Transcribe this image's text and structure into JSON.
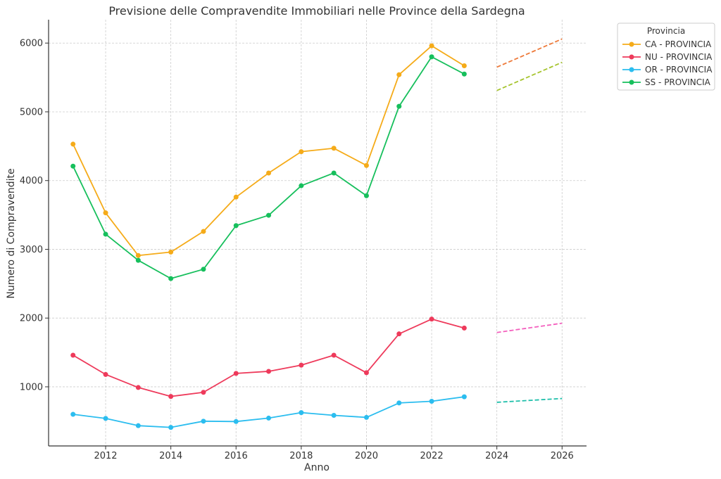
{
  "chart_data": {
    "type": "line",
    "title": "Previsione delle Compravendite Immobiliari nelle Province della Sardegna",
    "xlabel": "Anno",
    "ylabel": "Numero di Compravendite",
    "xlim": [
      2010.25,
      2026.75
    ],
    "ylim": [
      140,
      6340
    ],
    "x_ticks": [
      2012,
      2014,
      2016,
      2018,
      2020,
      2022,
      2024,
      2026
    ],
    "y_ticks": [
      1000,
      2000,
      3000,
      4000,
      5000,
      6000
    ],
    "grid": true,
    "legend": {
      "title": "Provincia",
      "placement": "top-right, outside plot"
    },
    "x": [
      2011,
      2012,
      2013,
      2014,
      2015,
      2016,
      2017,
      2018,
      2019,
      2020,
      2021,
      2022,
      2023
    ],
    "series": [
      {
        "name": "CA - PROVINCIA",
        "color": "#f5ab19",
        "values": [
          4530,
          3530,
          2910,
          2960,
          3260,
          3760,
          4110,
          4420,
          4470,
          4220,
          5540,
          5960,
          5670
        ]
      },
      {
        "name": "NU - PROVINCIA",
        "color": "#ee3a5b",
        "values": [
          1460,
          1180,
          990,
          860,
          920,
          1195,
          1225,
          1315,
          1460,
          1205,
          1770,
          1985,
          1855
        ]
      },
      {
        "name": "OR - PROVINCIA",
        "color": "#2bbdef",
        "values": [
          600,
          540,
          435,
          410,
          500,
          495,
          545,
          625,
          585,
          555,
          765,
          790,
          855
        ]
      },
      {
        "name": "SS - PROVINCIA",
        "color": "#16bf5c",
        "values": [
          4210,
          3220,
          2840,
          2575,
          2710,
          3345,
          3495,
          3925,
          4110,
          3780,
          5080,
          5800,
          5550
        ]
      }
    ],
    "forecast": {
      "x": [
        2024,
        2026
      ],
      "series": [
        {
          "color": "#ee7a3a",
          "values": [
            5650,
            6060
          ]
        },
        {
          "color": "#f460be",
          "values": [
            1790,
            1925
          ]
        },
        {
          "color": "#1fbfaa",
          "values": [
            775,
            830
          ]
        },
        {
          "color": "#a6c42e",
          "values": [
            5310,
            5720
          ]
        }
      ]
    }
  }
}
